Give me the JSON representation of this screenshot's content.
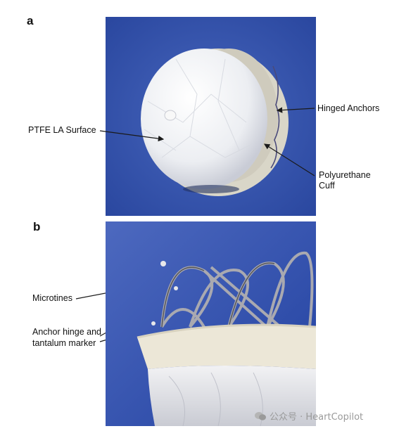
{
  "panels": {
    "a": {
      "letter": "a",
      "colors": {
        "background": "#2f4fa8",
        "device": "#f3f4f6",
        "cuff": "#d8d6c8"
      },
      "labels": {
        "ptfe": "PTFE LA Surface",
        "hinged_anchors": "Hinged Anchors",
        "polyurethane_line1": "Polyurethane",
        "polyurethane_line2": "Cuff"
      }
    },
    "b": {
      "letter": "b",
      "colors": {
        "background": "#2a46a6",
        "foam": "#ebe6d6",
        "metal": "#a6a6ac"
      },
      "labels": {
        "microtines": "Microtines",
        "anchor_line1": "Anchor hinge and",
        "anchor_line2": "tantalum marker"
      }
    }
  },
  "watermark": {
    "text": "公众号 · HeartCopilot",
    "icon": "wechat-icon"
  }
}
